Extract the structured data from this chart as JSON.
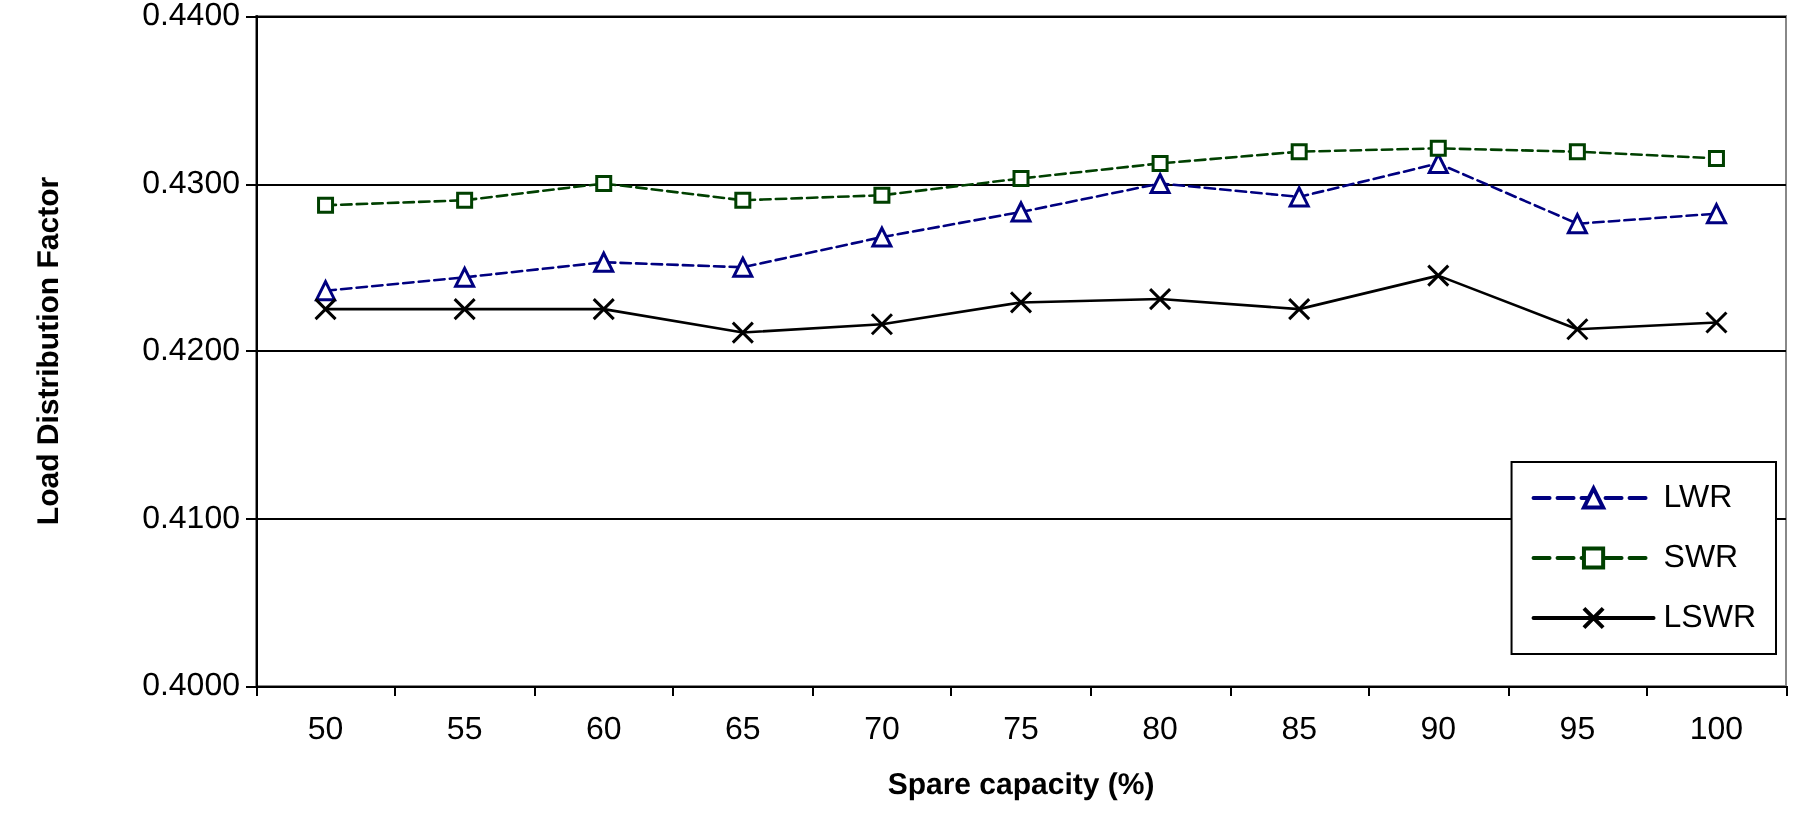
{
  "chart_data": {
    "type": "line",
    "xlabel": "Spare capacity (%)",
    "ylabel": "Load Distribution Factor",
    "categories": [
      "50",
      "55",
      "60",
      "65",
      "70",
      "75",
      "80",
      "85",
      "90",
      "95",
      "100"
    ],
    "series": [
      {
        "name": "LWR",
        "color": "#000080",
        "marker": "triangle",
        "line_style": "dashed",
        "values": [
          0.4236,
          0.4244,
          0.4253,
          0.425,
          0.4268,
          0.4283,
          0.43,
          0.4292,
          0.4312,
          0.4276,
          0.4282
        ]
      },
      {
        "name": "SWR",
        "color": "#004000",
        "marker": "square",
        "line_style": "dashed",
        "values": [
          0.4287,
          0.429,
          0.43,
          0.429,
          0.4293,
          0.4303,
          0.4312,
          0.4319,
          0.4321,
          0.4319,
          0.4315
        ]
      },
      {
        "name": "LSWR",
        "color": "#000000",
        "marker": "cross",
        "line_style": "solid",
        "values": [
          0.4225,
          0.4225,
          0.4225,
          0.4211,
          0.4216,
          0.4229,
          0.4231,
          0.4225,
          0.4245,
          0.4213,
          0.4217
        ]
      }
    ],
    "ylim": [
      0.4,
      0.44
    ],
    "yticks": [
      {
        "value": 0.4,
        "label": "0.4000"
      },
      {
        "value": 0.41,
        "label": "0.4100"
      },
      {
        "value": 0.42,
        "label": "0.4200"
      },
      {
        "value": 0.43,
        "label": "0.4300"
      },
      {
        "value": 0.44,
        "label": "0.4400"
      }
    ],
    "grid": "y",
    "legend": "bottom right"
  }
}
